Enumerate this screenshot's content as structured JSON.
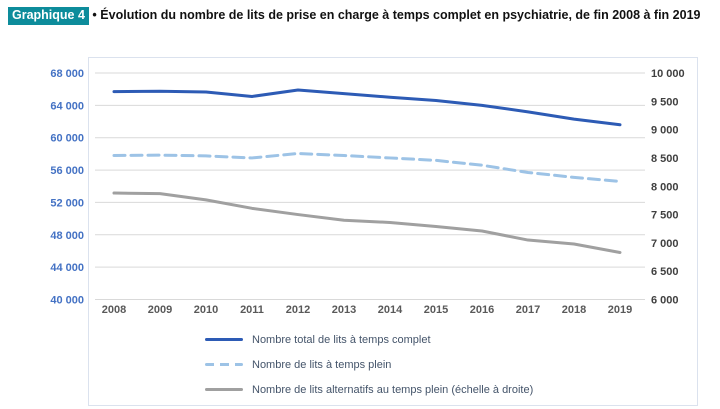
{
  "header": {
    "chip": "Graphique 4",
    "bullet": "•",
    "title": "Évolution du nombre de lits de prise en charge à temps complet en psychiatrie, de fin 2008 à fin 2019"
  },
  "chart_data": {
    "type": "line",
    "x": [
      "2008",
      "2009",
      "2010",
      "2011",
      "2012",
      "2013",
      "2014",
      "2015",
      "2016",
      "2017",
      "2018",
      "2019"
    ],
    "left_axis": {
      "min": 40000,
      "max": 68000,
      "ticks": [
        "68 000",
        "64 000",
        "60 000",
        "56 000",
        "52 000",
        "48 000",
        "44 000",
        "40 000"
      ],
      "color": "#4472c4",
      "grid": true
    },
    "right_axis": {
      "min": 6000,
      "max": 10000,
      "ticks": [
        "10 000",
        "9 500",
        "9 000",
        "8 500",
        "8 000",
        "7 500",
        "7 000",
        "6 500",
        "6 000"
      ],
      "color": "#404040",
      "grid": false
    },
    "x_axis": {
      "color": "#595959"
    },
    "gridline_color": "#d9d9d9",
    "legend_position": "bottom-left",
    "series": [
      {
        "id": "total",
        "name": "Nombre total de lits à temps complet",
        "axis": "left",
        "color": "#2d5bb5",
        "style": "solid",
        "values": [
          65700,
          65750,
          65650,
          65100,
          65900,
          65450,
          65000,
          64600,
          64000,
          63200,
          62300,
          61600
        ]
      },
      {
        "id": "temps-plein",
        "name": "Nombre de lits à temps plein",
        "axis": "left",
        "color": "#9dc3e6",
        "style": "dashed",
        "values": [
          57800,
          57850,
          57750,
          57500,
          58050,
          57800,
          57500,
          57200,
          56600,
          55700,
          55100,
          54600
        ]
      },
      {
        "id": "alternatifs",
        "name": "Nombre de lits alternatifs au temps plein (échelle à droite)",
        "axis": "right",
        "color": "#a0a0a0",
        "style": "solid",
        "values": [
          7880,
          7870,
          7760,
          7610,
          7500,
          7400,
          7360,
          7290,
          7210,
          7050,
          6980,
          6830
        ]
      }
    ]
  }
}
